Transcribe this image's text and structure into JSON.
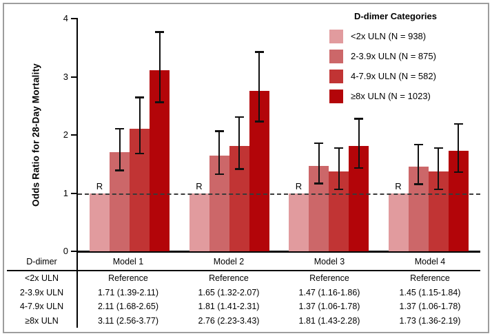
{
  "chart_data": {
    "type": "bar",
    "title": "",
    "xlabel": "",
    "ylabel": "Odds Ratio for 28-Day Mortality",
    "ylim": [
      0,
      4
    ],
    "yticks": [
      0,
      1,
      2,
      3,
      4
    ],
    "grid": false,
    "reference_line": {
      "y": 1,
      "style": "dashed",
      "marker": "R"
    },
    "categories": [
      "Model 1",
      "Model 2",
      "Model 3",
      "Model 4"
    ],
    "legend": {
      "title": "D-dimer Categories",
      "position": "top-right"
    },
    "series": [
      {
        "name": "<2x ULN (N = 938)",
        "color": "#E19B9E",
        "reference": true,
        "values": [
          1.0,
          1.0,
          1.0,
          1.0
        ],
        "ci_low": [
          null,
          null,
          null,
          null
        ],
        "ci_high": [
          null,
          null,
          null,
          null
        ]
      },
      {
        "name": "2-3.9x ULN (N = 875)",
        "color": "#CC6769",
        "values": [
          1.71,
          1.65,
          1.47,
          1.45
        ],
        "ci_low": [
          1.39,
          1.32,
          1.16,
          1.15
        ],
        "ci_high": [
          2.11,
          2.07,
          1.86,
          1.84
        ]
      },
      {
        "name": "4-7.9x ULN (N = 582)",
        "color": "#C13434",
        "values": [
          2.11,
          1.81,
          1.37,
          1.37
        ],
        "ci_low": [
          1.68,
          1.41,
          1.06,
          1.06
        ],
        "ci_high": [
          2.65,
          2.31,
          1.78,
          1.78
        ]
      },
      {
        "name": "≥8x ULN (N = 1023)",
        "color": "#B30509",
        "values": [
          3.11,
          2.76,
          1.81,
          1.73
        ],
        "ci_low": [
          2.56,
          2.23,
          1.43,
          1.36
        ],
        "ci_high": [
          3.77,
          3.43,
          2.28,
          2.19
        ]
      }
    ]
  },
  "table": {
    "corner_label": "D-dimer",
    "col_headers": [
      "Model 1",
      "Model 2",
      "Model 3",
      "Model 4"
    ],
    "rows": [
      {
        "label": "<2x ULN",
        "values": [
          "Reference",
          "Reference",
          "Reference",
          "Reference"
        ]
      },
      {
        "label": "2-3.9x ULN",
        "values": [
          "1.71 (1.39-2.11)",
          "1.65 (1.32-2.07)",
          "1.47 (1.16-1.86)",
          "1.45 (1.15-1.84)"
        ]
      },
      {
        "label": "4-7.9x ULN",
        "values": [
          "2.11 (1.68-2.65)",
          "1.81 (1.41-2.31)",
          "1.37 (1.06-1.78)",
          "1.37 (1.06-1.78)"
        ]
      },
      {
        "label": "≥8x ULN",
        "values": [
          "3.11 (2.56-3.77)",
          "2.76 (2.23-3.43)",
          "1.81 (1.43-2.28)",
          "1.73 (1.36-2.19)"
        ]
      }
    ]
  }
}
